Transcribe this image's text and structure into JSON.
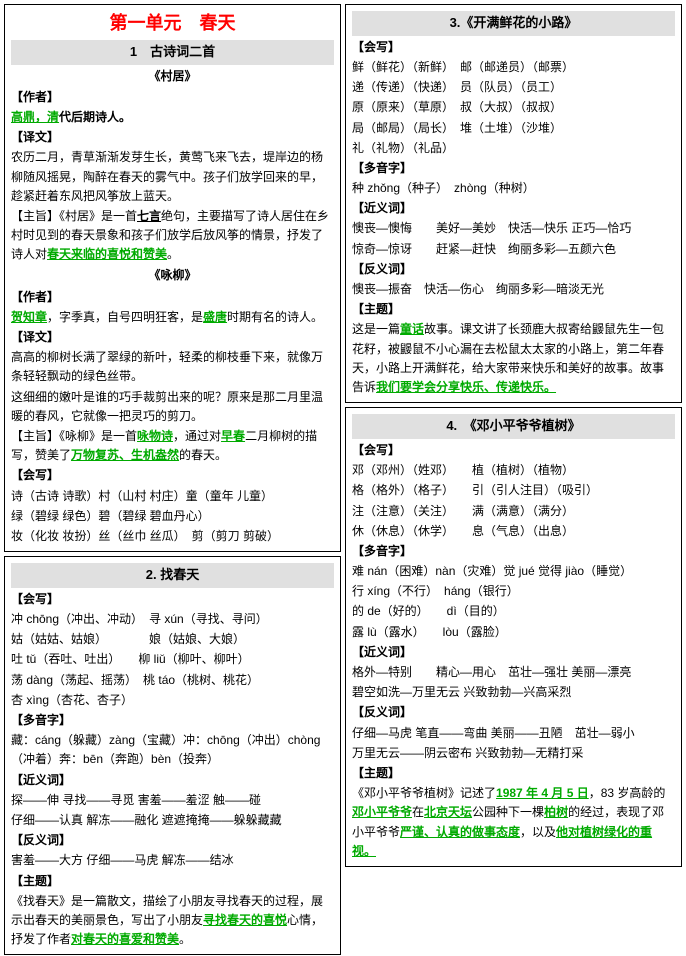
{
  "colors": {
    "title": "#ff0000",
    "section_bg": "#e0e0e0",
    "highlight": "#00aa00"
  },
  "fonts": {
    "body_size": 12,
    "unit_title_size": 18,
    "section_title_size": 13
  },
  "left": {
    "unit_title": "第一单元　春天",
    "s1": {
      "title": "1　古诗词二首",
      "sub1": "《村居》",
      "author_label": "【作者】",
      "author1": "高鼎，",
      "author2": "清",
      "author3": "代后期诗人。",
      "yiwen_label": "【译文】",
      "yiwen": "农历二月，青草渐渐发芽生长，黄莺飞来飞去，堤岸边的杨柳随风摇晃，陶醉在春天的雾气中。孩子们放学回来的早，趁紧赶着东风把风筝放上蓝天。",
      "zhuzhi": "【主旨】《村居》是一首",
      "zhuzhi_u": "七言",
      "zhuzhi2": "绝句，主要描写了诗人居住在乡村时见到的春天景象和孩子们放学后放风筝的情景，抒发了诗人对",
      "zhuzhi_g": "春天来临的喜悦和赞美",
      "zhuzhi3": "。",
      "sub2": "《咏柳》",
      "author2_label": "【作者】",
      "a2_1": "贺知章",
      "a2_2": "，字季真，自号四明狂客，是",
      "a2_3": "盛唐",
      "a2_4": "时期有名的诗人。",
      "yw2_label": "【译文】",
      "yw2": "高高的柳树长满了翠绿的新叶，轻柔的柳枝垂下来，就像万条轻轻飘动的绿色丝带。",
      "yw2b": "这细细的嫩叶是谁的巧手裁剪出来的呢？原来是那二月里温暖的春风，它就像一把灵巧的剪刀。",
      "zz2a": "【主旨】《咏柳》是一首",
      "zz2b": "咏物诗",
      "zz2c": "，通过对",
      "zz2d": "早春",
      "zz2e": "二月柳树的描写，赞美了",
      "zz2f": "万物复苏、生机盎然",
      "zz2g": "的春天。",
      "hx_label": "【会写】",
      "hx1": "诗（古诗 诗歌）村（山村 村庄）童（童年 儿童）",
      "hx2": "绿（碧绿 绿色）碧（碧绿 碧血丹心）",
      "hx3": "妆（化妆 妆扮）丝（丝巾 丝瓜）　剪（剪刀 剪破）"
    },
    "s2": {
      "title": "2. 找春天",
      "hx_label": "【会写】",
      "l1": "冲 chōng（冲出、冲动）　寻 xún（寻找、寻问）",
      "l2": "姑（姑姑、姑娘）　　　　娘（姑娘、大娘）",
      "l3": "吐 tǔ（吞吐、吐出）　　柳 liǔ（柳叶、柳叶）",
      "l4": "荡 dàng（荡起、摇荡）　桃 táo（桃树、桃花）",
      "l5": "杏 xìng（杏花、杏子）",
      "dyz_label": "【多音字】",
      "dyz1": "藏：cáng（躲藏）zàng（宝藏）冲：chōng（冲出）chòng（冲着）奔：bēn（奔跑）bèn（投奔）",
      "jyc_label": "【近义词】",
      "jyc1": "探——伸 寻找——寻觅 害羞——羞涩 触——碰",
      "jyc2": "仔细——认真 解冻——融化 遮遮掩掩——躲躲藏藏",
      "fyc_label": "【反义词】",
      "fyc1": "害羞——大方 仔细——马虎 解冻——结冰",
      "zt_label": "【主题】",
      "zt1": "《找春天》是一篇散文，描绘了小朋友寻找春天的过程，展示出春天的美丽景色，写出了小朋友",
      "zt2": "寻找春天的喜悦",
      "zt3": "心情，抒发了作者",
      "zt4": "对春天的喜爱和赞美",
      "zt5": "。"
    }
  },
  "right": {
    "s3": {
      "title": "3.《开满鲜花的小路》",
      "hx_label": "【会写】",
      "l1": "鲜（鲜花）（新鲜）　邮（邮递员）（邮票）",
      "l2": "递（传递）（快递）　员（队员）（员工）",
      "l3": "原（原来）（草原）　叔（大叔）（叔叔）",
      "l4": "局（邮局）（局长）　堆（土堆）（沙堆）",
      "l5": "礼（礼物）（礼品）",
      "dyz_label": "【多音字】",
      "dyz": "种 zhǒng（种子）　zhòng（种树）",
      "jyc_label": "【近义词】",
      "jyc1": "懊丧—懊悔　　美好—美妙　快活—快乐 正巧—恰巧",
      "jyc2": "惊奇—惊讶　　赶紧—赶快　绚丽多彩—五颜六色",
      "fyc_label": "【反义词】",
      "fyc": "懊丧—振奋　快活—伤心　绚丽多彩—暗淡无光",
      "zt_label": "【主题】",
      "zt1": "这是一篇",
      "zt2": "童话",
      "zt3": "故事。课文讲了长颈鹿大叔寄给鼹鼠先生一包花籽，被鼹鼠不小心漏在去松鼠太太家的小路上，第二年春天，小路上开满鲜花，给大家带来快乐和美好的故事。故事告诉",
      "zt4": "我们要学会分享快乐、传递快乐。"
    },
    "s4": {
      "title": "4.　《邓小平爷爷植树》",
      "hx_label": "【会写】",
      "l1": "邓（邓州）（姓邓）　　植（植树）（植物）",
      "l2": "格（格外）（格子）　　引（引人注目）（吸引）",
      "l3": "注（注意）（关注）　　满（满意）（满分）",
      "l4": "休（休息）（休学）　　息（气息）（出息）",
      "dyz_label": "【多音字】",
      "d1": "难 nán（困难）nàn（灾难）觉 jué 觉得 jiào（睡觉）",
      "d2": "行 xíng（不行）　háng（银行）",
      "d3": "的 de（好的）　　dì（目的）",
      "d4": "露 lù（露水）　　lòu（露脸）",
      "jyc_label": "【近义词】",
      "jyc1": "格外—特别　　精心—用心　茁壮—强壮 美丽—漂亮",
      "jyc2": "碧空如洗—万里无云 兴致勃勃—兴高采烈",
      "fyc_label": "【反义词】",
      "fyc1": "仔细—马虎 笔直——弯曲 美丽——丑陋　茁壮—弱小",
      "fyc2": "万里无云——阴云密布 兴致勃勃—无精打采",
      "zt_label": "【主题】",
      "zt1": "《邓小平爷爷植树》记述了",
      "zt2": "1987 年 4 月 5 日",
      "zt3": "，83 岁高龄的",
      "zt4": "邓小平爷爷",
      "zt5": "在",
      "zt6": "北京天坛",
      "zt7": "公园种下一棵",
      "zt8": "柏树",
      "zt9": "的经过，表现了邓小平爷爷",
      "zt10": "严谨、认真的做事态度",
      "zt11": "，以及",
      "zt12": "他对植树绿化的重视。"
    }
  }
}
